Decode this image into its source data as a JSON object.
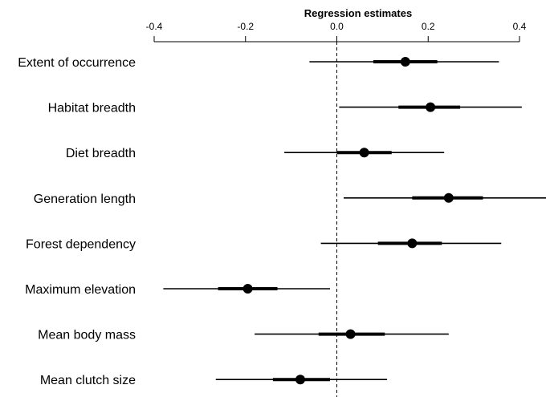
{
  "chart_data": {
    "type": "forest",
    "title": "",
    "xlabel": "Regression estimates",
    "ylabel": "",
    "xlim": [
      -0.4,
      0.4
    ],
    "x_ticks": [
      "-0.4",
      "-0.2",
      "0.0",
      "0.2",
      "0.4"
    ],
    "reference_line": 0,
    "categories": [
      "Extent of occurrence",
      "Habitat breadth",
      "Diet breadth",
      "Generation length",
      "Forest dependency",
      "Maximum elevation",
      "Mean body mass",
      "Mean clutch size"
    ],
    "estimates": [
      0.15,
      0.205,
      0.06,
      0.245,
      0.165,
      -0.195,
      0.03,
      -0.08
    ],
    "inner_interval": [
      [
        0.08,
        0.22
      ],
      [
        0.135,
        0.27
      ],
      [
        0.0,
        0.12
      ],
      [
        0.165,
        0.32
      ],
      [
        0.09,
        0.23
      ],
      [
        -0.26,
        -0.13
      ],
      [
        -0.04,
        0.105
      ],
      [
        -0.14,
        -0.015
      ]
    ],
    "outer_interval": [
      [
        -0.06,
        0.355
      ],
      [
        0.005,
        0.405
      ],
      [
        -0.115,
        0.235
      ],
      [
        0.015,
        0.46
      ],
      [
        -0.035,
        0.36
      ],
      [
        -0.38,
        -0.015
      ],
      [
        -0.18,
        0.245
      ],
      [
        -0.265,
        0.11
      ]
    ],
    "grid": false,
    "legend": "none"
  }
}
